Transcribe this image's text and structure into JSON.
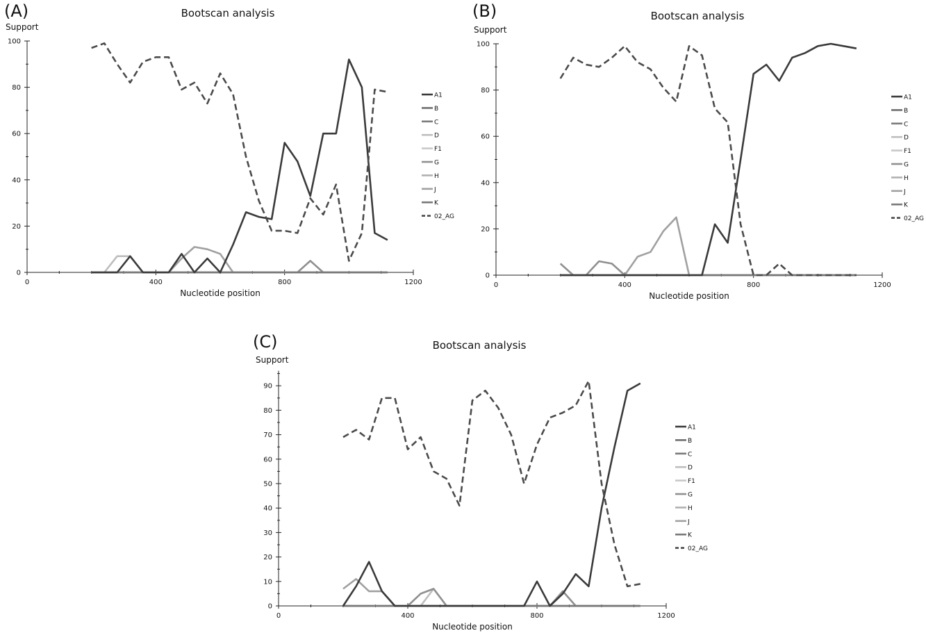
{
  "panels": [
    {
      "label": "(A)",
      "chart_data": {
        "type": "line",
        "title": "Bootscan analysis",
        "xlabel": "Nucleotide position",
        "ylabel": "Support",
        "xlim": [
          0,
          1200
        ],
        "ylim": [
          0,
          100
        ],
        "xticks": [
          0,
          400,
          800,
          1200
        ],
        "yticks": [
          0,
          20,
          40,
          60,
          80,
          100
        ],
        "x": [
          200,
          240,
          280,
          320,
          360,
          400,
          440,
          480,
          520,
          560,
          600,
          640,
          680,
          720,
          760,
          800,
          840,
          880,
          920,
          960,
          1000,
          1040,
          1080,
          1120
        ],
        "legend_position": "right",
        "series": [
          {
            "name": "A1",
            "color": "#3a3a3a",
            "dashed": false,
            "values": [
              0,
              0,
              0,
              7,
              0,
              0,
              0,
              8,
              0,
              6,
              0,
              12,
              26,
              24,
              23,
              56,
              48,
              33,
              60,
              60,
              92,
              80,
              17,
              14
            ]
          },
          {
            "name": "B",
            "color": "#6e6e6e",
            "dashed": false,
            "values": [
              0,
              0,
              0,
              0,
              0,
              0,
              0,
              0,
              0,
              0,
              0,
              0,
              0,
              0,
              0,
              0,
              0,
              0,
              0,
              0,
              0,
              0,
              0,
              0
            ]
          },
          {
            "name": "C",
            "color": "#7a7a7a",
            "dashed": false,
            "values": [
              0,
              0,
              0,
              0,
              0,
              0,
              0,
              0,
              0,
              0,
              0,
              0,
              0,
              0,
              0,
              0,
              0,
              0,
              0,
              0,
              0,
              0,
              0,
              0
            ]
          },
          {
            "name": "D",
            "color": "#bdbdbd",
            "dashed": false,
            "values": [
              0,
              0,
              7,
              7,
              0,
              0,
              0,
              0,
              0,
              0,
              0,
              0,
              0,
              0,
              0,
              0,
              0,
              0,
              0,
              0,
              0,
              0,
              0,
              0
            ]
          },
          {
            "name": "F1",
            "color": "#c8c8c8",
            "dashed": false,
            "values": [
              0,
              0,
              0,
              0,
              0,
              0,
              0,
              0,
              0,
              0,
              0,
              0,
              0,
              0,
              0,
              0,
              0,
              0,
              0,
              0,
              0,
              0,
              0,
              0
            ]
          },
          {
            "name": "G",
            "color": "#8f8f8f",
            "dashed": false,
            "values": [
              0,
              0,
              0,
              0,
              0,
              0,
              0,
              0,
              0,
              0,
              0,
              0,
              0,
              0,
              0,
              0,
              0,
              5,
              0,
              0,
              0,
              0,
              0,
              0
            ]
          },
          {
            "name": "H",
            "color": "#b0b0b0",
            "dashed": false,
            "values": [
              0,
              0,
              0,
              0,
              0,
              0,
              0,
              0,
              0,
              0,
              0,
              0,
              0,
              0,
              0,
              0,
              0,
              0,
              0,
              0,
              0,
              0,
              0,
              0
            ]
          },
          {
            "name": "J",
            "color": "#a0a0a0",
            "dashed": false,
            "values": [
              0,
              0,
              0,
              0,
              0,
              0,
              0,
              6,
              11,
              10,
              8,
              0,
              0,
              0,
              0,
              0,
              0,
              0,
              0,
              0,
              0,
              0,
              0,
              0
            ]
          },
          {
            "name": "K",
            "color": "#777777",
            "dashed": false,
            "values": [
              0,
              0,
              0,
              0,
              0,
              0,
              0,
              0,
              0,
              0,
              0,
              0,
              0,
              0,
              0,
              0,
              0,
              0,
              0,
              0,
              0,
              0,
              0,
              0
            ]
          },
          {
            "name": "02_AG",
            "color": "#4a4a4a",
            "dashed": true,
            "values": [
              97,
              99,
              90,
              82,
              91,
              93,
              93,
              79,
              82,
              73,
              86,
              77,
              50,
              31,
              18,
              18,
              17,
              32,
              25,
              38,
              5,
              17,
              79,
              78
            ]
          }
        ]
      }
    },
    {
      "label": "(B)",
      "chart_data": {
        "type": "line",
        "title": "Bootscan analysis",
        "xlabel": "Nucleotide position",
        "ylabel": "Support",
        "xlim": [
          0,
          1200
        ],
        "ylim": [
          0,
          100
        ],
        "xticks": [
          0,
          400,
          800,
          1200
        ],
        "yticks": [
          0,
          20,
          40,
          60,
          80,
          100
        ],
        "x": [
          200,
          240,
          280,
          320,
          360,
          400,
          440,
          480,
          520,
          560,
          600,
          640,
          680,
          720,
          760,
          800,
          840,
          880,
          920,
          960,
          1000,
          1040,
          1080,
          1120
        ],
        "legend_position": "right",
        "series": [
          {
            "name": "A1",
            "color": "#3a3a3a",
            "dashed": false,
            "values": [
              0,
              0,
              0,
              0,
              0,
              0,
              0,
              0,
              0,
              0,
              0,
              0,
              22,
              14,
              50,
              87,
              91,
              84,
              94,
              96,
              99,
              100,
              99,
              98
            ]
          },
          {
            "name": "B",
            "color": "#6e6e6e",
            "dashed": false,
            "values": [
              0,
              0,
              0,
              0,
              0,
              0,
              0,
              0,
              0,
              0,
              0,
              0,
              0,
              0,
              0,
              0,
              0,
              0,
              0,
              0,
              0,
              0,
              0,
              0
            ]
          },
          {
            "name": "C",
            "color": "#7a7a7a",
            "dashed": false,
            "values": [
              0,
              0,
              0,
              0,
              0,
              0,
              0,
              0,
              0,
              0,
              0,
              0,
              0,
              0,
              0,
              0,
              0,
              0,
              0,
              0,
              0,
              0,
              0,
              0
            ]
          },
          {
            "name": "D",
            "color": "#bdbdbd",
            "dashed": false,
            "values": [
              0,
              0,
              0,
              0,
              0,
              0,
              0,
              0,
              0,
              0,
              0,
              0,
              0,
              0,
              0,
              0,
              0,
              0,
              0,
              0,
              0,
              0,
              0,
              0
            ]
          },
          {
            "name": "F1",
            "color": "#c8c8c8",
            "dashed": false,
            "values": [
              0,
              0,
              0,
              0,
              0,
              0,
              0,
              0,
              0,
              0,
              0,
              0,
              0,
              0,
              0,
              0,
              0,
              0,
              0,
              0,
              0,
              0,
              0,
              0
            ]
          },
          {
            "name": "G",
            "color": "#8f8f8f",
            "dashed": false,
            "values": [
              5,
              0,
              0,
              6,
              5,
              0,
              0,
              0,
              0,
              0,
              0,
              0,
              0,
              0,
              0,
              0,
              0,
              0,
              0,
              0,
              0,
              0,
              0,
              0
            ]
          },
          {
            "name": "H",
            "color": "#b0b0b0",
            "dashed": false,
            "values": [
              0,
              0,
              0,
              0,
              0,
              0,
              0,
              0,
              0,
              0,
              0,
              0,
              0,
              0,
              0,
              0,
              0,
              0,
              0,
              0,
              0,
              0,
              0,
              0
            ]
          },
          {
            "name": "J",
            "color": "#a0a0a0",
            "dashed": false,
            "values": [
              0,
              0,
              0,
              0,
              0,
              0,
              8,
              10,
              19,
              25,
              0,
              0,
              0,
              0,
              0,
              0,
              0,
              0,
              0,
              0,
              0,
              0,
              0,
              0
            ]
          },
          {
            "name": "K",
            "color": "#777777",
            "dashed": false,
            "values": [
              0,
              0,
              0,
              0,
              0,
              0,
              0,
              0,
              0,
              0,
              0,
              0,
              0,
              0,
              0,
              0,
              0,
              0,
              0,
              0,
              0,
              0,
              0,
              0
            ]
          },
          {
            "name": "02_AG",
            "color": "#4a4a4a",
            "dashed": true,
            "values": [
              85,
              94,
              91,
              90,
              94,
              99,
              92,
              89,
              81,
              75,
              99,
              95,
              72,
              66,
              22,
              0,
              0,
              5,
              0,
              0,
              0,
              0,
              0,
              0
            ]
          }
        ]
      }
    },
    {
      "label": "(C)",
      "chart_data": {
        "type": "line",
        "title": "Bootscan analysis",
        "xlabel": "Nucleotide position",
        "ylabel": "Support",
        "xlim": [
          0,
          1200
        ],
        "ylim": [
          0,
          95
        ],
        "xticks": [
          0,
          400,
          800,
          1200
        ],
        "yticks": [
          0,
          10,
          20,
          30,
          40,
          50,
          60,
          70,
          80,
          90
        ],
        "x": [
          200,
          240,
          280,
          320,
          360,
          400,
          440,
          480,
          520,
          560,
          600,
          640,
          680,
          720,
          760,
          800,
          840,
          880,
          920,
          960,
          1000,
          1040,
          1080,
          1120
        ],
        "legend_position": "right",
        "series": [
          {
            "name": "A1",
            "color": "#3a3a3a",
            "dashed": false,
            "values": [
              0,
              8,
              18,
              6,
              0,
              0,
              0,
              0,
              0,
              0,
              0,
              0,
              0,
              0,
              0,
              10,
              0,
              5,
              13,
              8,
              40,
              65,
              88,
              91
            ]
          },
          {
            "name": "B",
            "color": "#6e6e6e",
            "dashed": false,
            "values": [
              0,
              0,
              0,
              0,
              0,
              0,
              0,
              0,
              0,
              0,
              0,
              0,
              0,
              0,
              0,
              0,
              0,
              0,
              0,
              0,
              0,
              0,
              0,
              0
            ]
          },
          {
            "name": "C",
            "color": "#7a7a7a",
            "dashed": false,
            "values": [
              0,
              0,
              0,
              0,
              0,
              0,
              0,
              0,
              0,
              0,
              0,
              0,
              0,
              0,
              0,
              0,
              0,
              0,
              0,
              0,
              0,
              0,
              0,
              0
            ]
          },
          {
            "name": "D",
            "color": "#bdbdbd",
            "dashed": false,
            "values": [
              0,
              0,
              0,
              0,
              0,
              0,
              0,
              7,
              0,
              0,
              0,
              0,
              0,
              0,
              0,
              0,
              0,
              0,
              0,
              0,
              0,
              0,
              0,
              0
            ]
          },
          {
            "name": "F1",
            "color": "#c8c8c8",
            "dashed": false,
            "values": [
              0,
              0,
              0,
              0,
              0,
              0,
              0,
              0,
              0,
              0,
              0,
              0,
              0,
              0,
              0,
              0,
              0,
              0,
              0,
              0,
              0,
              0,
              0,
              0
            ]
          },
          {
            "name": "G",
            "color": "#8f8f8f",
            "dashed": false,
            "values": [
              0,
              0,
              0,
              0,
              0,
              0,
              5,
              7,
              0,
              0,
              0,
              0,
              0,
              0,
              0,
              0,
              0,
              6,
              0,
              0,
              0,
              0,
              0,
              0
            ]
          },
          {
            "name": "H",
            "color": "#b0b0b0",
            "dashed": false,
            "values": [
              0,
              0,
              0,
              0,
              0,
              0,
              0,
              0,
              0,
              0,
              0,
              0,
              0,
              0,
              0,
              0,
              0,
              0,
              0,
              0,
              0,
              0,
              0,
              0
            ]
          },
          {
            "name": "J",
            "color": "#a0a0a0",
            "dashed": false,
            "values": [
              7,
              11,
              6,
              6,
              0,
              0,
              0,
              0,
              0,
              0,
              0,
              0,
              0,
              0,
              0,
              0,
              0,
              0,
              0,
              0,
              0,
              0,
              0,
              0
            ]
          },
          {
            "name": "K",
            "color": "#777777",
            "dashed": false,
            "values": [
              0,
              0,
              0,
              0,
              0,
              0,
              0,
              0,
              0,
              0,
              0,
              0,
              0,
              0,
              0,
              0,
              0,
              0,
              0,
              0,
              0,
              0,
              0,
              0
            ]
          },
          {
            "name": "02_AG",
            "color": "#4a4a4a",
            "dashed": true,
            "values": [
              69,
              72,
              68,
              85,
              85,
              64,
              69,
              55,
              52,
              41,
              84,
              88,
              81,
              70,
              50,
              66,
              77,
              79,
              82,
              92,
              50,
              25,
              8,
              9
            ]
          }
        ]
      }
    }
  ]
}
